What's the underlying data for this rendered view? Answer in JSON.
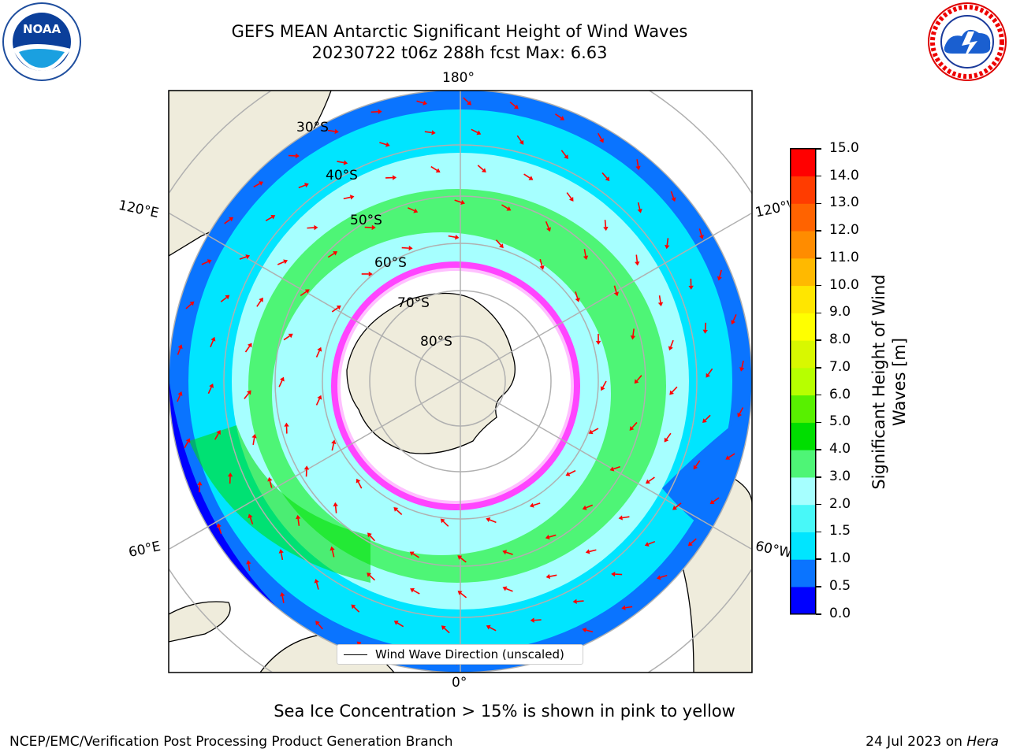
{
  "header": {
    "title_line1": "GEFS MEAN Antarctic Significant Height of Wind Waves",
    "title_line2": "20230722 t06z 288h fcst   Max: 6.63"
  },
  "map": {
    "longitude_labels": {
      "top": "180°",
      "upper_left": "120°E",
      "upper_right": "120°W",
      "lower_left": "60°E",
      "lower_right": "60°W",
      "bottom": "0°"
    },
    "latitude_labels": [
      "30°S",
      "40°S",
      "50°S",
      "60°S",
      "70°S",
      "80°S"
    ],
    "legend_label": "Wind Wave Direction (unscaled)",
    "colors": {
      "land": "#efecdc",
      "sea_ice": "#ff44ff",
      "wave_arrows": "#ff0000",
      "graticule": "#b0b0b0"
    }
  },
  "colorbar": {
    "label": "Significant Height of Wind Waves [m]",
    "ticks": [
      "0.0",
      "0.5",
      "1.0",
      "1.5",
      "2.0",
      "3.0",
      "4.0",
      "5.0",
      "6.0",
      "7.0",
      "8.0",
      "9.0",
      "10.0",
      "11.0",
      "12.0",
      "13.0",
      "14.0",
      "15.0"
    ],
    "colors": [
      "#0000ff",
      "#0a74ff",
      "#00e5ff",
      "#48f8f8",
      "#a6ffff",
      "#4ef576",
      "#00de00",
      "#58f000",
      "#b7ff00",
      "#d8f800",
      "#ffff00",
      "#ffe600",
      "#ffb900",
      "#ff8c00",
      "#ff6300",
      "#ff3c00",
      "#ff0000"
    ]
  },
  "footer": {
    "note": "Sea Ice Concentration > 15% is shown in pink to yellow",
    "credit": "NCEP/EMC/Verification Post Processing Product Generation Branch",
    "date_prefix": "24 Jul 2023 on ",
    "machine": "Hera"
  },
  "logos": {
    "left_text": "NOAA",
    "right_text": "NATIONAL WEATHER SERVICE"
  }
}
